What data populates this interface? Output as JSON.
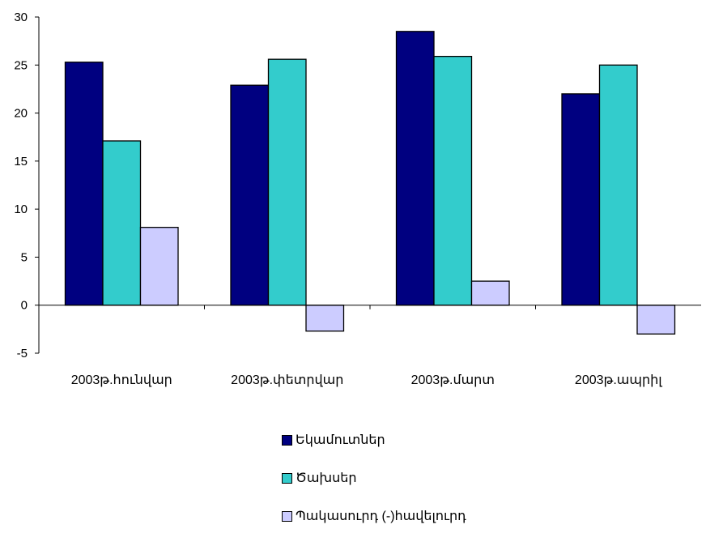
{
  "chart_data": {
    "type": "bar",
    "title": "",
    "xlabel": "",
    "ylabel": "",
    "categories": [
      "2003թ.հունվար",
      "2003թ.փետրվար",
      "2003թ.մարտ",
      "2003թ.ապրիլ"
    ],
    "series": [
      {
        "name": "Եկամուտներ",
        "color": "#000080",
        "values": [
          25.3,
          22.9,
          28.5,
          22.0
        ]
      },
      {
        "name": "Ծախսեր",
        "color": "#33CCCC",
        "values": [
          17.1,
          25.6,
          25.9,
          25.0
        ]
      },
      {
        "name": "Պակասուրդ (-)հավելուրդ",
        "color": "#CCCCFF",
        "values": [
          8.1,
          -2.7,
          2.5,
          -3.0
        ]
      }
    ],
    "ylim": [
      -5,
      30
    ],
    "yticks": [
      -5,
      0,
      5,
      10,
      15,
      20,
      25,
      30
    ],
    "grid": false,
    "legend_position": "bottom"
  }
}
